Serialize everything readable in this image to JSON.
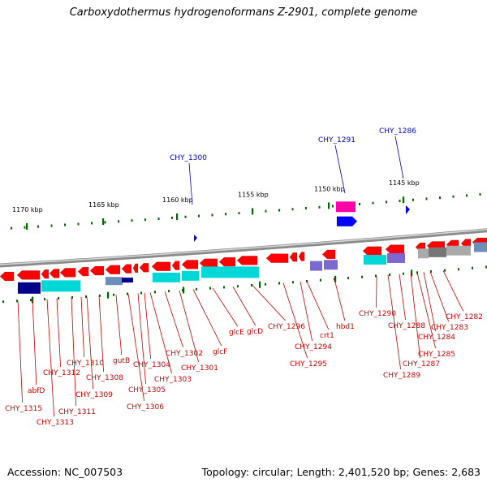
{
  "header": {
    "title": "Carboxydothermus hydrogenoformans Z-2901, complete genome"
  },
  "footer": {
    "accession": "Accession: NC_007503",
    "stats": "Topology: circular; Length: 2,401,520 bp; Genes: 2,683"
  },
  "scale": {
    "unit": "kbp",
    "ticks": [
      {
        "label": "1170 kbp"
      },
      {
        "label": "1165 kbp"
      },
      {
        "label": "1160 kbp"
      },
      {
        "label": "1155 kbp"
      },
      {
        "label": "1150 kbp"
      },
      {
        "label": "1145 kbp"
      }
    ]
  },
  "colors": {
    "gene_red": "#ff0000",
    "label_red": "#cc0000",
    "label_blue": "#0000cc",
    "cyan": "#00d8d8",
    "navy": "#000088",
    "purple": "#7b68d0",
    "magenta": "#ff00aa",
    "blue": "#0000ff",
    "gray": "#aaaaaa",
    "scale_green": "#006600"
  },
  "top_labels": [
    "CHY_1300",
    "CHY_1291",
    "CHY_1286"
  ],
  "bottom_labels": [
    "CHY_1315",
    "abfD",
    "CHY_1313",
    "CHY_1312",
    "CHY_1311",
    "CHY_1310",
    "CHY_1309",
    "CHY_1308",
    "gutB",
    "CHY_1306",
    "CHY_1305",
    "CHY_1304",
    "CHY_1303",
    "CHY_1302",
    "CHY_1301",
    "glcF",
    "glcE",
    "glcD",
    "CHY_1296",
    "CHY_1295",
    "CHY_1294",
    "crt1",
    "hbd1",
    "CHY_1290",
    "CHY_1289",
    "CHY_1288",
    "CHY_1287",
    "CHY_1285",
    "CHY_1284",
    "CHY_1283",
    "CHY_1282"
  ]
}
